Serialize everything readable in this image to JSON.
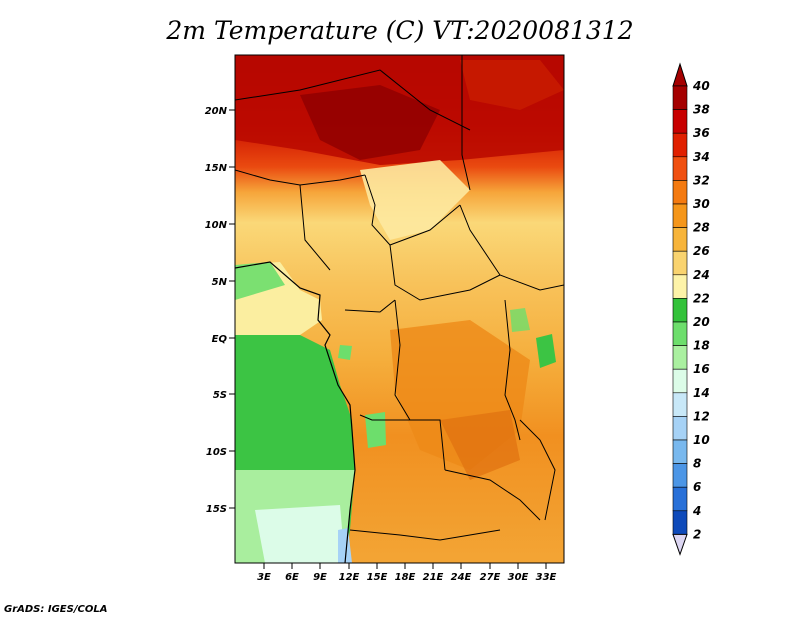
{
  "title": "2m Temperature (C) VT:2020081312",
  "credit": "GrADS: IGES/COLA",
  "map": {
    "lat_ticks": [
      "20N",
      "15N",
      "10N",
      "5N",
      "EQ",
      "5S",
      "10S",
      "15S"
    ],
    "lon_ticks": [
      "3E",
      "6E",
      "9E",
      "12E",
      "15E",
      "18E",
      "21E",
      "24E",
      "27E",
      "30E",
      "33E"
    ]
  },
  "colorbar": {
    "labels": [
      "40",
      "38",
      "36",
      "34",
      "32",
      "30",
      "28",
      "26",
      "24",
      "22",
      "20",
      "18",
      "16",
      "14",
      "12",
      "10",
      "8",
      "6",
      "4",
      "2"
    ],
    "colors": [
      "#a50000",
      "#c80000",
      "#e02000",
      "#f05010",
      "#f47a10",
      "#f5961a",
      "#f7b43a",
      "#f9d36f",
      "#fdf3a8",
      "#33c23a",
      "#6dde6c",
      "#aaf0a0",
      "#dcfce8",
      "#c8e8f8",
      "#a6d2f6",
      "#78b8ee",
      "#4c96e6",
      "#2870d8",
      "#0e4aba",
      "#081a78"
    ]
  }
}
